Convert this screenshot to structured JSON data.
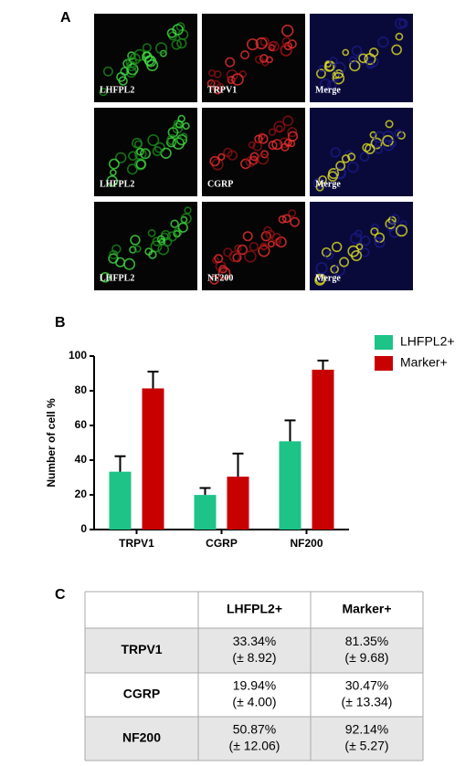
{
  "panel_labels": [
    "A",
    "B",
    "C"
  ],
  "panel_a": {
    "rows": [
      [
        "LHFPL2",
        "TRPV1",
        "Merge"
      ],
      [
        "LHFPL2",
        "CGRP",
        "Merge"
      ],
      [
        "LHFPL2",
        "NF200",
        "Merge"
      ]
    ]
  },
  "chart_data": {
    "type": "bar",
    "y_label": "Number of cell %",
    "categories": [
      "TRPV1",
      "CGRP",
      "NF200"
    ],
    "series": [
      {
        "name": "LHFPL2+",
        "color": "#1dc387",
        "values": [
          33.34,
          19.94,
          50.87
        ],
        "errors": [
          8.92,
          4.0,
          12.06
        ]
      },
      {
        "name": "Marker+",
        "color": "#c80000",
        "values": [
          81.35,
          30.47,
          92.14
        ],
        "errors": [
          9.68,
          13.34,
          5.27
        ]
      }
    ],
    "ylim": [
      0,
      100
    ],
    "yticks": [
      0,
      20,
      40,
      60,
      80,
      100
    ],
    "grid": false,
    "legend": "right"
  },
  "table": {
    "header": [
      "LHFPL2+",
      "Marker+"
    ],
    "rows": [
      {
        "label": "TRPV1",
        "cells": [
          [
            "33.34%",
            "(± 8.92)"
          ],
          [
            "81.35%",
            "(± 9.68)"
          ]
        ]
      },
      {
        "label": "CGRP",
        "cells": [
          [
            "19.94%",
            "(± 4.00)"
          ],
          [
            "30.47%",
            "(± 13.34)"
          ]
        ]
      },
      {
        "label": "NF200",
        "cells": [
          [
            "50.87%",
            "(± 12.06)"
          ],
          [
            "92.14%",
            "(± 5.27)"
          ]
        ]
      }
    ]
  }
}
